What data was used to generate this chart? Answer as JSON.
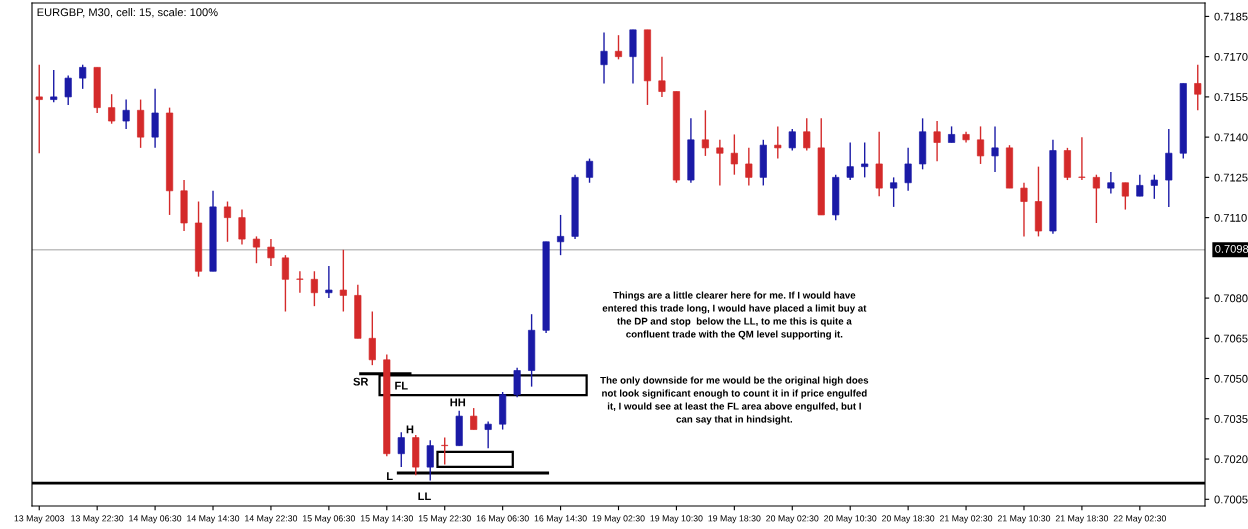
{
  "chart_data": {
    "type": "candlestick",
    "title": "EURGBP, M30, cell: 15, scale: 100%",
    "categories": [
      "13 May 2003",
      null,
      null,
      null,
      "13 May 22:30",
      null,
      null,
      null,
      "14 May 06:30",
      null,
      null,
      null,
      "14 May 14:30",
      null,
      null,
      null,
      "14 May 22:30",
      null,
      null,
      null,
      "15 May 06:30",
      null,
      null,
      null,
      "15 May 14:30",
      null,
      null,
      null,
      "15 May 22:30",
      null,
      null,
      null,
      "16 May 06:30",
      null,
      null,
      null,
      "16 May 14:30",
      null,
      null,
      null,
      "19 May 02:30",
      null,
      null,
      null,
      "19 May 10:30",
      null,
      null,
      null,
      "19 May 18:30",
      null,
      null,
      null,
      "20 May 02:30",
      null,
      null,
      null,
      "20 May 10:30",
      null,
      null,
      null,
      "20 May 18:30",
      null,
      null,
      null,
      "21 May 02:30",
      null,
      null,
      null,
      "21 May 10:30",
      null,
      null,
      null,
      "21 May 18:30",
      null,
      null,
      null,
      "22 May 02:30",
      null,
      null,
      null,
      null
    ],
    "ohlc": [
      [
        0.7155,
        0.7167,
        0.7134,
        0.7154
      ],
      [
        0.7154,
        0.7165,
        0.7153,
        0.7155
      ],
      [
        0.7155,
        0.7163,
        0.7152,
        0.7162
      ],
      [
        0.7162,
        0.7167,
        0.7158,
        0.7166
      ],
      [
        0.7166,
        0.7166,
        0.7149,
        0.7151
      ],
      [
        0.7151,
        0.7156,
        0.7145,
        0.7146
      ],
      [
        0.7146,
        0.7154,
        0.7143,
        0.715
      ],
      [
        0.715,
        0.7154,
        0.7136,
        0.714
      ],
      [
        0.714,
        0.7158,
        0.7136,
        0.7149
      ],
      [
        0.7149,
        0.7151,
        0.7111,
        0.712
      ],
      [
        0.712,
        0.7124,
        0.7105,
        0.7108
      ],
      [
        0.7108,
        0.7116,
        0.7088,
        0.709
      ],
      [
        0.709,
        0.712,
        0.709,
        0.7114
      ],
      [
        0.7114,
        0.7116,
        0.7101,
        0.711
      ],
      [
        0.711,
        0.7113,
        0.71,
        0.7102
      ],
      [
        0.7102,
        0.7103,
        0.7093,
        0.7099
      ],
      [
        0.7099,
        0.7102,
        0.7092,
        0.7095
      ],
      [
        0.7095,
        0.7096,
        0.7075,
        0.7087
      ],
      [
        0.7087,
        0.709,
        0.7082,
        0.7087
      ],
      [
        0.7087,
        0.709,
        0.7077,
        0.7082
      ],
      [
        0.7082,
        0.7092,
        0.708,
        0.7083
      ],
      [
        0.7083,
        0.7098,
        0.7075,
        0.7081
      ],
      [
        0.7081,
        0.7085,
        0.7065,
        0.7065
      ],
      [
        0.7065,
        0.7075,
        0.7055,
        0.7057
      ],
      [
        0.7057,
        0.7059,
        0.7021,
        0.7022
      ],
      [
        0.7022,
        0.703,
        0.7017,
        0.7028
      ],
      [
        0.7028,
        0.7029,
        0.7014,
        0.7017
      ],
      [
        0.7017,
        0.7027,
        0.7012,
        0.7025
      ],
      [
        0.7025,
        0.7028,
        0.7018,
        0.7025
      ],
      [
        0.7025,
        0.7038,
        0.7025,
        0.7036
      ],
      [
        0.7036,
        0.7039,
        0.7031,
        0.7031
      ],
      [
        0.7031,
        0.7034,
        0.7024,
        0.7033
      ],
      [
        0.7033,
        0.7045,
        0.7031,
        0.7044
      ],
      [
        0.7044,
        0.7054,
        0.7043,
        0.7053
      ],
      [
        0.7053,
        0.7074,
        0.7047,
        0.7068
      ],
      [
        0.7068,
        0.7101,
        0.7067,
        0.7101
      ],
      [
        0.7101,
        0.7111,
        0.7096,
        0.7103
      ],
      [
        0.7103,
        0.7126,
        0.7102,
        0.7125
      ],
      [
        0.7125,
        0.7132,
        0.7123,
        0.7131
      ],
      [
        0.7167,
        0.7179,
        0.716,
        0.7172
      ],
      [
        0.7172,
        0.7178,
        0.7169,
        0.717
      ],
      [
        0.717,
        0.718,
        0.716,
        0.718
      ],
      [
        0.718,
        0.718,
        0.7152,
        0.7161
      ],
      [
        0.7161,
        0.717,
        0.7155,
        0.7157
      ],
      [
        0.7157,
        0.7157,
        0.7123,
        0.7124
      ],
      [
        0.7124,
        0.7147,
        0.7123,
        0.7139
      ],
      [
        0.7139,
        0.715,
        0.7133,
        0.7136
      ],
      [
        0.7136,
        0.7139,
        0.7122,
        0.7134
      ],
      [
        0.7134,
        0.7141,
        0.7126,
        0.713
      ],
      [
        0.713,
        0.7136,
        0.7122,
        0.7125
      ],
      [
        0.7125,
        0.7139,
        0.7122,
        0.7137
      ],
      [
        0.7137,
        0.7144,
        0.7132,
        0.7136
      ],
      [
        0.7136,
        0.7143,
        0.7135,
        0.7142
      ],
      [
        0.7142,
        0.7147,
        0.7135,
        0.7136
      ],
      [
        0.7136,
        0.7147,
        0.7111,
        0.7111
      ],
      [
        0.7111,
        0.7126,
        0.7109,
        0.7125
      ],
      [
        0.7125,
        0.7138,
        0.7124,
        0.7129
      ],
      [
        0.7129,
        0.7138,
        0.7125,
        0.713
      ],
      [
        0.713,
        0.7142,
        0.7118,
        0.7121
      ],
      [
        0.7121,
        0.7125,
        0.7114,
        0.7123
      ],
      [
        0.7123,
        0.7136,
        0.712,
        0.713
      ],
      [
        0.713,
        0.7147,
        0.7128,
        0.7142
      ],
      [
        0.7142,
        0.7146,
        0.7131,
        0.7138
      ],
      [
        0.7138,
        0.7144,
        0.7138,
        0.7141
      ],
      [
        0.7141,
        0.7142,
        0.7138,
        0.7139
      ],
      [
        0.7139,
        0.7144,
        0.713,
        0.7133
      ],
      [
        0.7133,
        0.7144,
        0.7127,
        0.7136
      ],
      [
        0.7136,
        0.7137,
        0.7121,
        0.7121
      ],
      [
        0.7121,
        0.7123,
        0.7103,
        0.7116
      ],
      [
        0.7116,
        0.7129,
        0.7103,
        0.7105
      ],
      [
        0.7105,
        0.7139,
        0.7104,
        0.7135
      ],
      [
        0.7135,
        0.7136,
        0.7124,
        0.7125
      ],
      [
        0.7125,
        0.714,
        0.7124,
        0.7125
      ],
      [
        0.7125,
        0.7126,
        0.7108,
        0.7121
      ],
      [
        0.7121,
        0.7127,
        0.7119,
        0.7123
      ],
      [
        0.7123,
        0.7123,
        0.7113,
        0.7118
      ],
      [
        0.7118,
        0.7126,
        0.7118,
        0.7122
      ],
      [
        0.7122,
        0.7126,
        0.7117,
        0.7124
      ],
      [
        0.7124,
        0.7143,
        0.7114,
        0.7134
      ],
      [
        0.7134,
        0.716,
        0.7132,
        0.716
      ],
      [
        0.716,
        0.7167,
        0.715,
        0.7156
      ]
    ],
    "colors": [
      "#d42a2a",
      "#1a1aa6",
      "#1a1aa6",
      "#1a1aa6",
      "#d42a2a",
      "#d42a2a",
      "#1a1aa6",
      "#d42a2a",
      "#1a1aa6",
      "#d42a2a",
      "#d42a2a",
      "#d42a2a",
      "#1a1aa6",
      "#d42a2a",
      "#d42a2a",
      "#d42a2a",
      "#d42a2a",
      "#d42a2a",
      "#d42a2a",
      "#d42a2a",
      "#1a1aa6",
      "#d42a2a",
      "#d42a2a",
      "#d42a2a",
      "#d42a2a",
      "#1a1aa6",
      "#d42a2a",
      "#1a1aa6",
      "#d42a2a",
      "#1a1aa6",
      "#d42a2a",
      "#1a1aa6",
      "#1a1aa6",
      "#1a1aa6",
      "#1a1aa6",
      "#1a1aa6",
      "#1a1aa6",
      "#1a1aa6",
      "#1a1aa6",
      "#1a1aa6",
      "#d42a2a",
      "#1a1aa6",
      "#d42a2a",
      "#d42a2a",
      "#d42a2a",
      "#1a1aa6",
      "#d42a2a",
      "#d42a2a",
      "#d42a2a",
      "#d42a2a",
      "#1a1aa6",
      "#d42a2a",
      "#1a1aa6",
      "#d42a2a",
      "#d42a2a",
      "#1a1aa6",
      "#1a1aa6",
      "#1a1aa6",
      "#d42a2a",
      "#1a1aa6",
      "#1a1aa6",
      "#1a1aa6",
      "#d42a2a",
      "#1a1aa6",
      "#d42a2a",
      "#d42a2a",
      "#1a1aa6",
      "#d42a2a",
      "#d42a2a",
      "#d42a2a",
      "#1a1aa6",
      "#d42a2a",
      "#d42a2a",
      "#d42a2a",
      "#1a1aa6",
      "#d42a2a",
      "#1a1aa6",
      "#1a1aa6",
      "#1a1aa6",
      "#1a1aa6",
      "#d42a2a"
    ],
    "ylim": [
      0.70025,
      0.719
    ],
    "yticks": [
      {
        "value": 0.7005,
        "label": "0.7005"
      },
      {
        "value": 0.702,
        "label": "0.7020"
      },
      {
        "value": 0.7035,
        "label": "0.7035"
      },
      {
        "value": 0.705,
        "label": "0.7050"
      },
      {
        "value": 0.7065,
        "label": "0.7065"
      },
      {
        "value": 0.708,
        "label": "0.7080"
      },
      {
        "value": 0.711,
        "label": "0.7110"
      },
      {
        "value": 0.7125,
        "label": "0.7125"
      },
      {
        "value": 0.714,
        "label": "0.7140"
      },
      {
        "value": 0.7155,
        "label": "0.7155"
      },
      {
        "value": 0.717,
        "label": "0.7170"
      },
      {
        "value": 0.7185,
        "label": "0.7185"
      }
    ],
    "ref_lines": [
      {
        "axis": "y",
        "value": 0.7098,
        "label": "0.7098",
        "color": "#c0c0c0"
      },
      {
        "axis": "y",
        "value": 0.7011,
        "color": "#000000"
      }
    ],
    "annotations": [
      "SR",
      "FL",
      "HH",
      "H",
      "L",
      "LL",
      "Things are a little clearer here for me. If I would have\nentered this trade long, I would have placed a limit buy at\nthe DP and stop  below the LL, to me this is quite a\nconfluent trade with the QM level supporting it.",
      "The only downside for me would be the original high does\nnot look significant enough to count it in if price engulfed\nit, I would see at least the FL area above engulfed, but I\ncan say that in hindsight."
    ]
  }
}
